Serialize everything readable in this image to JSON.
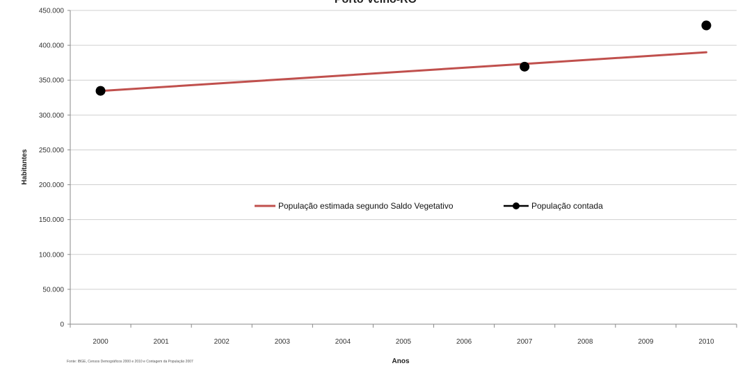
{
  "chart_data": {
    "type": "line",
    "title": "Porto Velho-RO",
    "xlabel": "Anos",
    "ylabel": "Habitantes",
    "categories": [
      "2000",
      "2001",
      "2002",
      "2003",
      "2004",
      "2005",
      "2006",
      "2007",
      "2008",
      "2009",
      "2010"
    ],
    "yticks": [
      "0",
      "50.000",
      "100.000",
      "150.000",
      "200.000",
      "250.000",
      "300.000",
      "350.000",
      "400.000",
      "450.000"
    ],
    "ylim": [
      0,
      450000
    ],
    "grid": true,
    "legend_position": "center",
    "series": [
      {
        "name": "População estimada segundo Saldo Vegetativo",
        "style": "line",
        "color": "#c0504d",
        "x": [
          "2000",
          "2010"
        ],
        "values": [
          334500,
          390000
        ]
      },
      {
        "name": "População contada",
        "style": "marker",
        "color": "#000000",
        "x": [
          "2000",
          "2007",
          "2010"
        ],
        "values": [
          334661,
          369345,
          428527
        ]
      }
    ],
    "source_note": "Fonte: IBGE, Censos Demográficos 2000 e 2010 e Contagem da População 2007"
  }
}
